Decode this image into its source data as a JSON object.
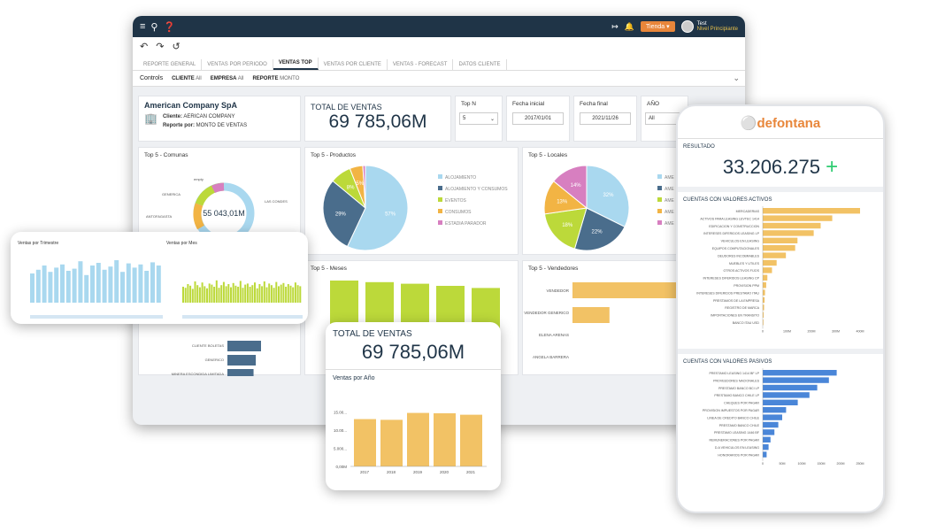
{
  "topbar": {
    "tienda": "Tienda",
    "user_name": "Test",
    "user_level": "Nivel Principiante"
  },
  "tabs": [
    "REPORTE GENERAL",
    "VENTAS POR PERIODO",
    "VENTAS TOP",
    "VENTAS POR CLIENTE",
    "VENTAS - FORECAST",
    "DATOS CLIENTE"
  ],
  "controls": {
    "title": "Controls",
    "cliente_label": "CLIENTE",
    "cliente_value": "All",
    "empresa_label": "EMPRESA",
    "empresa_value": "All",
    "reporte_label": "REPORTE",
    "reporte_value": "MONTO"
  },
  "company": {
    "name": "American Company SpA",
    "cliente_label": "Cliente:",
    "cliente_value": "AERICAN COMPANY",
    "reporte_label": "Reporte por:",
    "reporte_value": "MONTO DE VENTAS"
  },
  "total": {
    "label": "TOTAL DE VENTAS",
    "value": "69 785,06M"
  },
  "filters": {
    "topn_label": "Top N",
    "topn_value": "5",
    "fecha_ini_label": "Fecha inicial",
    "fecha_ini_value": "2017/01/01",
    "fecha_fin_label": "Fecha final",
    "fecha_fin_value": "2021/11/26",
    "anio_label": "AÑO",
    "anio_value": "All"
  },
  "comunas": {
    "title": "Top 5 - Comunas",
    "center": "55 043,01M",
    "labels": [
      "empty",
      "GENERICA",
      "ANTOFAGASTA",
      "LAS CONDES"
    ]
  },
  "productos": {
    "title": "Top 5 - Productos",
    "legend": [
      "ALOJAMIENTO",
      "ALOJAMIENTO Y CONSUMOS",
      "EVENTOS",
      "CONSUMOS",
      "ESTADIA PARADOR"
    ]
  },
  "locales": {
    "title": "Top 5 - Locales",
    "legend": [
      "AME",
      "AME",
      "AME",
      "AME",
      "AME"
    ]
  },
  "meses": {
    "title": "Top 5 - Meses"
  },
  "vendedores": {
    "title": "Top 5 - Vendedores",
    "labels": [
      "VENDEDOR",
      "VENDEDOR GENERICO",
      "ELENA ARENAS",
      "ANGELA BARRERA"
    ]
  },
  "clientes": {
    "labels": [
      "CLIENTE BOLETAS",
      "GENERICO",
      "MINERA ESCONDIDA LIMITADA"
    ]
  },
  "trim": {
    "title1": "Ventas por Trimestre",
    "title2": "Ventas por Mes"
  },
  "anio_card": {
    "total_label": "TOTAL DE VENTAS",
    "total_value": "69 785,06M",
    "chart_title": "Ventas por Año"
  },
  "phone": {
    "brand": "defontana",
    "resultado_label": "RESULTADO",
    "resultado_value": "33.206.275",
    "activos_title": "CUENTAS CON VALORES ACTIVOS",
    "pasivos_title": "CUENTAS CON  VALORES PASIVOS",
    "activos_labels": [
      "MERCADERIAS",
      "ACTIVOS PARA LEASING LEVTEC 1414",
      "EDIFICACION Y CONSTRUCCION",
      "INTERESES DIFERIDOS LEASING LP",
      "VEHICULOS EN LEASING",
      "EQUIPOS COMPUTACIONALES",
      "DEUDORES INCOBRABLES",
      "MUEBLES Y UTILES",
      "OTROS ACTIVOS FIJOS",
      "INTERESES DIFERIDOS LEASING CP",
      "PROVISION PPM",
      "INTERESES DIFERIDOS PRESTAMO ITAU",
      "PRESTAMOS DE LA EMPRESA",
      "REGISTRO DE MARCA",
      "IMPORTACIONES EN TRANSITO",
      "BANCO ITAU USD"
    ],
    "pasivos_labels": [
      "PRESTAMO LEASING 1414 BF LP",
      "PROVEEDORES NACIONALES",
      "PRESTAMO BANCO BCI LP",
      "PRESTAMO BANCO CHILE LP",
      "CHEQUES POR PAGAR",
      "PROVISION IMPUESTOS POR PAGAR",
      "LINEA DE CREDITO BANCO CHILE",
      "PRESTAMO BANCO CHILE",
      "PRESTAMO LEASING 1446 BF",
      "REMUNERACIONES POR PAGAR",
      "D.A VEHICULOS EN LEASING",
      "HONORARIOS POR PAGAR"
    ]
  },
  "chart_data": [
    {
      "type": "pie",
      "title": "Top 5 - Productos",
      "labels": [
        "ALOJAMIENTO",
        "ALOJAMIENTO Y CONSUMOS",
        "EVENTOS",
        "CONSUMOS",
        "ESTADIA PARADOR"
      ],
      "values": [
        57,
        29,
        8,
        5,
        1
      ],
      "colors": [
        "#a9d8ef",
        "#4a6d8c",
        "#bcd93a",
        "#f2b444",
        "#d77fc0"
      ]
    },
    {
      "type": "pie",
      "title": "Top 5 - Locales",
      "values": [
        32,
        22,
        18,
        13,
        14
      ],
      "colors": [
        "#a9d8ef",
        "#4a6d8c",
        "#bcd93a",
        "#f2b444",
        "#d77fc0"
      ]
    },
    {
      "type": "bar",
      "title": "Ventas por Año",
      "categories": [
        "2017",
        "2018",
        "2019",
        "2020",
        "2021"
      ],
      "values": [
        13000,
        12800,
        14700,
        14600,
        14200
      ],
      "yticks": [
        "0,00M",
        "5.000...",
        "10.00...",
        "15.00..."
      ],
      "ylim": [
        0,
        18000
      ]
    },
    {
      "type": "bar",
      "title": "Top 5 - Meses",
      "values": [
        100,
        97,
        94,
        90,
        86
      ]
    },
    {
      "type": "bar",
      "title": "Top 5 - Vendedores",
      "values": [
        100,
        22
      ]
    },
    {
      "type": "bar",
      "title": "Top 5 - Clientes",
      "values": [
        45,
        38,
        35
      ]
    },
    {
      "type": "bar",
      "title": "CUENTAS CON VALORES ACTIVOS",
      "values": [
        420,
        300,
        250,
        220,
        150,
        140,
        100,
        60,
        40,
        20,
        15,
        10,
        8,
        6,
        4,
        3
      ],
      "xticks": [
        "0",
        "100M",
        "200M",
        "300M",
        "400M"
      ]
    },
    {
      "type": "bar",
      "title": "CUENTAS CON  VALORES PASIVOS",
      "values": [
        190,
        170,
        140,
        120,
        90,
        60,
        50,
        40,
        30,
        20,
        15,
        10
      ],
      "xticks": [
        "0",
        "50M",
        "100M",
        "150M",
        "200M",
        "250M"
      ]
    }
  ]
}
